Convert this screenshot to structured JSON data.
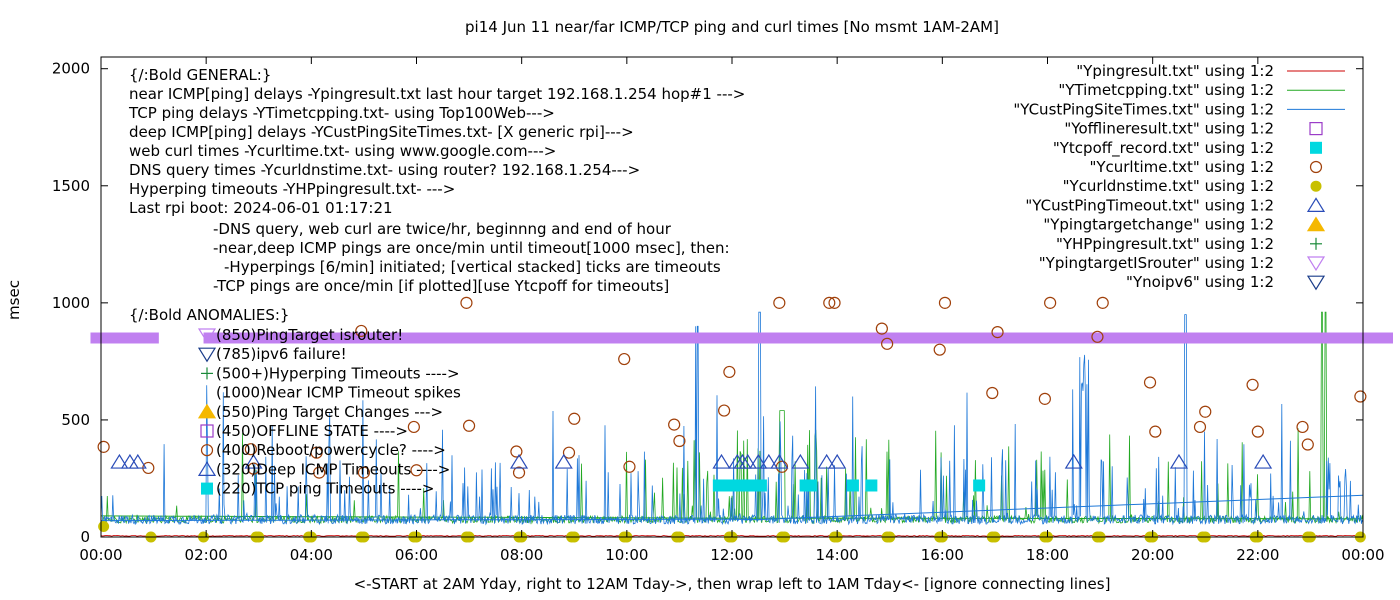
{
  "chart_data": {
    "type": "line",
    "title": "pi14 Jun 11  near/far ICMP/TCP ping and curl times [No msmt 1AM-2AM]",
    "xlabel": "<-START at 2AM Yday, right to 12AM Tday->, then wrap left to 1AM Tday<- [ignore connecting lines]",
    "ylabel": "msec",
    "x_unit": "hour",
    "xlim": [
      0,
      24
    ],
    "ylim": [
      0,
      2050
    ],
    "x_ticks": [
      {
        "value": 0,
        "label": "00:00"
      },
      {
        "value": 2,
        "label": "02:00"
      },
      {
        "value": 4,
        "label": "04:00"
      },
      {
        "value": 6,
        "label": "06:00"
      },
      {
        "value": 8,
        "label": "08:00"
      },
      {
        "value": 10,
        "label": "10:00"
      },
      {
        "value": 12,
        "label": "12:00"
      },
      {
        "value": 14,
        "label": "14:00"
      },
      {
        "value": 16,
        "label": "16:00"
      },
      {
        "value": 18,
        "label": "18:00"
      },
      {
        "value": 20,
        "label": "20:00"
      },
      {
        "value": 22,
        "label": "22:00"
      },
      {
        "value": 24,
        "label": "00:00"
      }
    ],
    "y_ticks": [
      {
        "value": 0,
        "label": "0"
      },
      {
        "value": 500,
        "label": "500"
      },
      {
        "value": 1000,
        "label": "1000"
      },
      {
        "value": 1500,
        "label": "1500"
      },
      {
        "value": 2000,
        "label": "2000"
      }
    ],
    "grid": false,
    "legend_position": "top-right",
    "annotations": [
      "{/:Bold GENERAL:}",
      "near ICMP[ping] delays -Ypingresult.txt last hour target 192.168.1.254 hop#1 --->",
      "TCP ping delays -YTimetcpping.txt- using Top100Web--->",
      "deep ICMP[ping] delays -YCustPingSiteTimes.txt- [X generic rpi]--->",
      "web curl times -Ycurltime.txt- using www.google.com--->",
      "DNS query times -Ycurldnstime.txt- using router? 192.168.1.254--->",
      "Hyperping timeouts -YHPpingresult.txt- --->",
      "Last rpi boot: 2024-06-01 01:17:21",
      "-DNS query, web curl are twice/hr, beginnng and end of hour",
      "-near,deep ICMP pings are once/min until timeout[1000 msec], then:",
      "-Hyperpings [6/min] initiated; [vertical stacked] ticks are timeouts",
      "-TCP pings are once/min [if plotted][use Ytcpoff for timeouts]",
      "{/:Bold ANOMALIES:}"
    ],
    "anomaly_legend": [
      {
        "label": "(850)PingTarget isrouter!",
        "marker": "tri-down-open-violet"
      },
      {
        "label": "(785)ipv6 failure!",
        "marker": "tri-down-open-blue"
      },
      {
        "label": "(500+)Hyperping Timeouts ---->",
        "marker": "plus-green"
      },
      {
        "label": "(1000)Near ICMP Timeout spikes",
        "marker": "none"
      },
      {
        "label": "(550)Ping Target Changes --->",
        "marker": "tri-up-filled-orange"
      },
      {
        "label": "(450)OFFLINE STATE ---->",
        "marker": "square-open-purple"
      },
      {
        "label": "(400)Reboot/powercycle? ---->",
        "marker": "circle-open-brown"
      },
      {
        "label": "(320)Deep ICMP Timeouts ---->",
        "marker": "tri-up-open-blue"
      },
      {
        "label": "(220)TCP ping Timeouts ---->",
        "marker": "square-filled-cyan"
      }
    ],
    "legend": [
      {
        "label": "\"Ypingresult.txt\" using 1:2",
        "type": "line",
        "color": "#cc0000"
      },
      {
        "label": "\"YTimetcpping.txt\" using 1:2",
        "type": "line",
        "color": "#22a822"
      },
      {
        "label": "\"YCustPingSiteTimes.txt\" using 1:2",
        "type": "line",
        "color": "#1e78d8"
      },
      {
        "label": "\"Yofflineresult.txt\" using 1:2",
        "type": "square-open",
        "color": "#9b3dc8"
      },
      {
        "label": "\"Ytcpoff_record.txt\" using 1:2",
        "type": "square-filled",
        "color": "#00d8e0"
      },
      {
        "label": "\"Ycurltime.txt\" using 1:2",
        "type": "circle-open",
        "color": "#a0400a"
      },
      {
        "label": "\"Ycurldnstime.txt\" using 1:2",
        "type": "circle-filled",
        "color": "#c8c000"
      },
      {
        "label": "\"YCustPingTimeout.txt\" using 1:2",
        "type": "tri-up-open",
        "color": "#2a4cb8"
      },
      {
        "label": "\"Ypingtargetchange\" using 1:2",
        "type": "tri-up-filled",
        "color": "#f5b800"
      },
      {
        "label": "\"YHPpingresult.txt\" using 1:2",
        "type": "plus",
        "color": "#1a8a3a"
      },
      {
        "label": "\"YpingtargetISrouter\" using 1:2",
        "type": "tri-down-open",
        "color": "#c080f0"
      },
      {
        "label": "\"Ynoipv6\" using 1:2",
        "type": "tri-down-open",
        "color": "#1a3c8a"
      }
    ],
    "series": {
      "curltime": [
        [
          0.05,
          385
        ],
        [
          0.9,
          295
        ],
        [
          2.85,
          375
        ],
        [
          2.9,
          292
        ],
        [
          4.1,
          360
        ],
        [
          4.15,
          275
        ],
        [
          4.95,
          880
        ],
        [
          5.0,
          275
        ],
        [
          5.95,
          470
        ],
        [
          6.0,
          285
        ],
        [
          6.95,
          1000
        ],
        [
          7.0,
          475
        ],
        [
          7.9,
          365
        ],
        [
          7.95,
          275
        ],
        [
          8.9,
          360
        ],
        [
          9.0,
          505
        ],
        [
          9.95,
          760
        ],
        [
          10.05,
          300
        ],
        [
          10.9,
          480
        ],
        [
          11.0,
          410
        ],
        [
          11.85,
          540
        ],
        [
          11.95,
          705
        ],
        [
          12.9,
          1000
        ],
        [
          12.95,
          300
        ],
        [
          13.85,
          1000
        ],
        [
          13.95,
          1000
        ],
        [
          14.85,
          890
        ],
        [
          14.95,
          825
        ],
        [
          15.95,
          800
        ],
        [
          16.05,
          1000
        ],
        [
          16.95,
          615
        ],
        [
          17.05,
          875
        ],
        [
          17.95,
          590
        ],
        [
          18.05,
          1000
        ],
        [
          18.95,
          855
        ],
        [
          19.05,
          1000
        ],
        [
          19.95,
          660
        ],
        [
          20.05,
          450
        ],
        [
          20.9,
          470
        ],
        [
          21.0,
          535
        ],
        [
          21.9,
          650
        ],
        [
          22.0,
          450
        ],
        [
          22.85,
          470
        ],
        [
          22.95,
          395
        ],
        [
          23.95,
          600
        ]
      ],
      "dns_x": [
        0.05,
        0.95,
        1.95,
        2.95,
        3.0,
        3.95,
        4.0,
        4.95,
        5.0,
        5.95,
        6.0,
        6.95,
        7.0,
        7.95,
        8.0,
        8.95,
        9.0,
        9.95,
        10.0,
        10.95,
        11.0,
        11.95,
        12.0,
        12.95,
        13.0,
        13.95,
        14.0,
        14.95,
        15.0,
        15.95,
        16.0,
        16.95,
        17.0,
        17.95,
        18.0,
        18.95,
        19.0,
        19.95,
        20.0,
        20.95,
        21.0,
        21.95,
        22.0,
        22.95,
        23.0,
        23.95
      ],
      "dns_first": 45,
      "custtimeout_x": [
        0.35,
        0.55,
        0.7,
        2.9,
        7.95,
        8.8,
        11.8,
        12.1,
        12.2,
        12.3,
        12.5,
        12.7,
        12.9,
        13.3,
        13.8,
        14.0,
        18.5,
        20.5,
        22.1
      ],
      "custtimeout_y": 320,
      "tcpoff_x": [
        11.75,
        11.95,
        12.1,
        12.25,
        12.4,
        12.55,
        13.4,
        13.5,
        14.3,
        14.65,
        16.7
      ],
      "tcpoff_y": 220,
      "isrouter_segments": [
        [
          -0.2,
          1.1
        ],
        [
          1.95,
          24.6
        ]
      ],
      "isrouter_y": 850
    }
  }
}
